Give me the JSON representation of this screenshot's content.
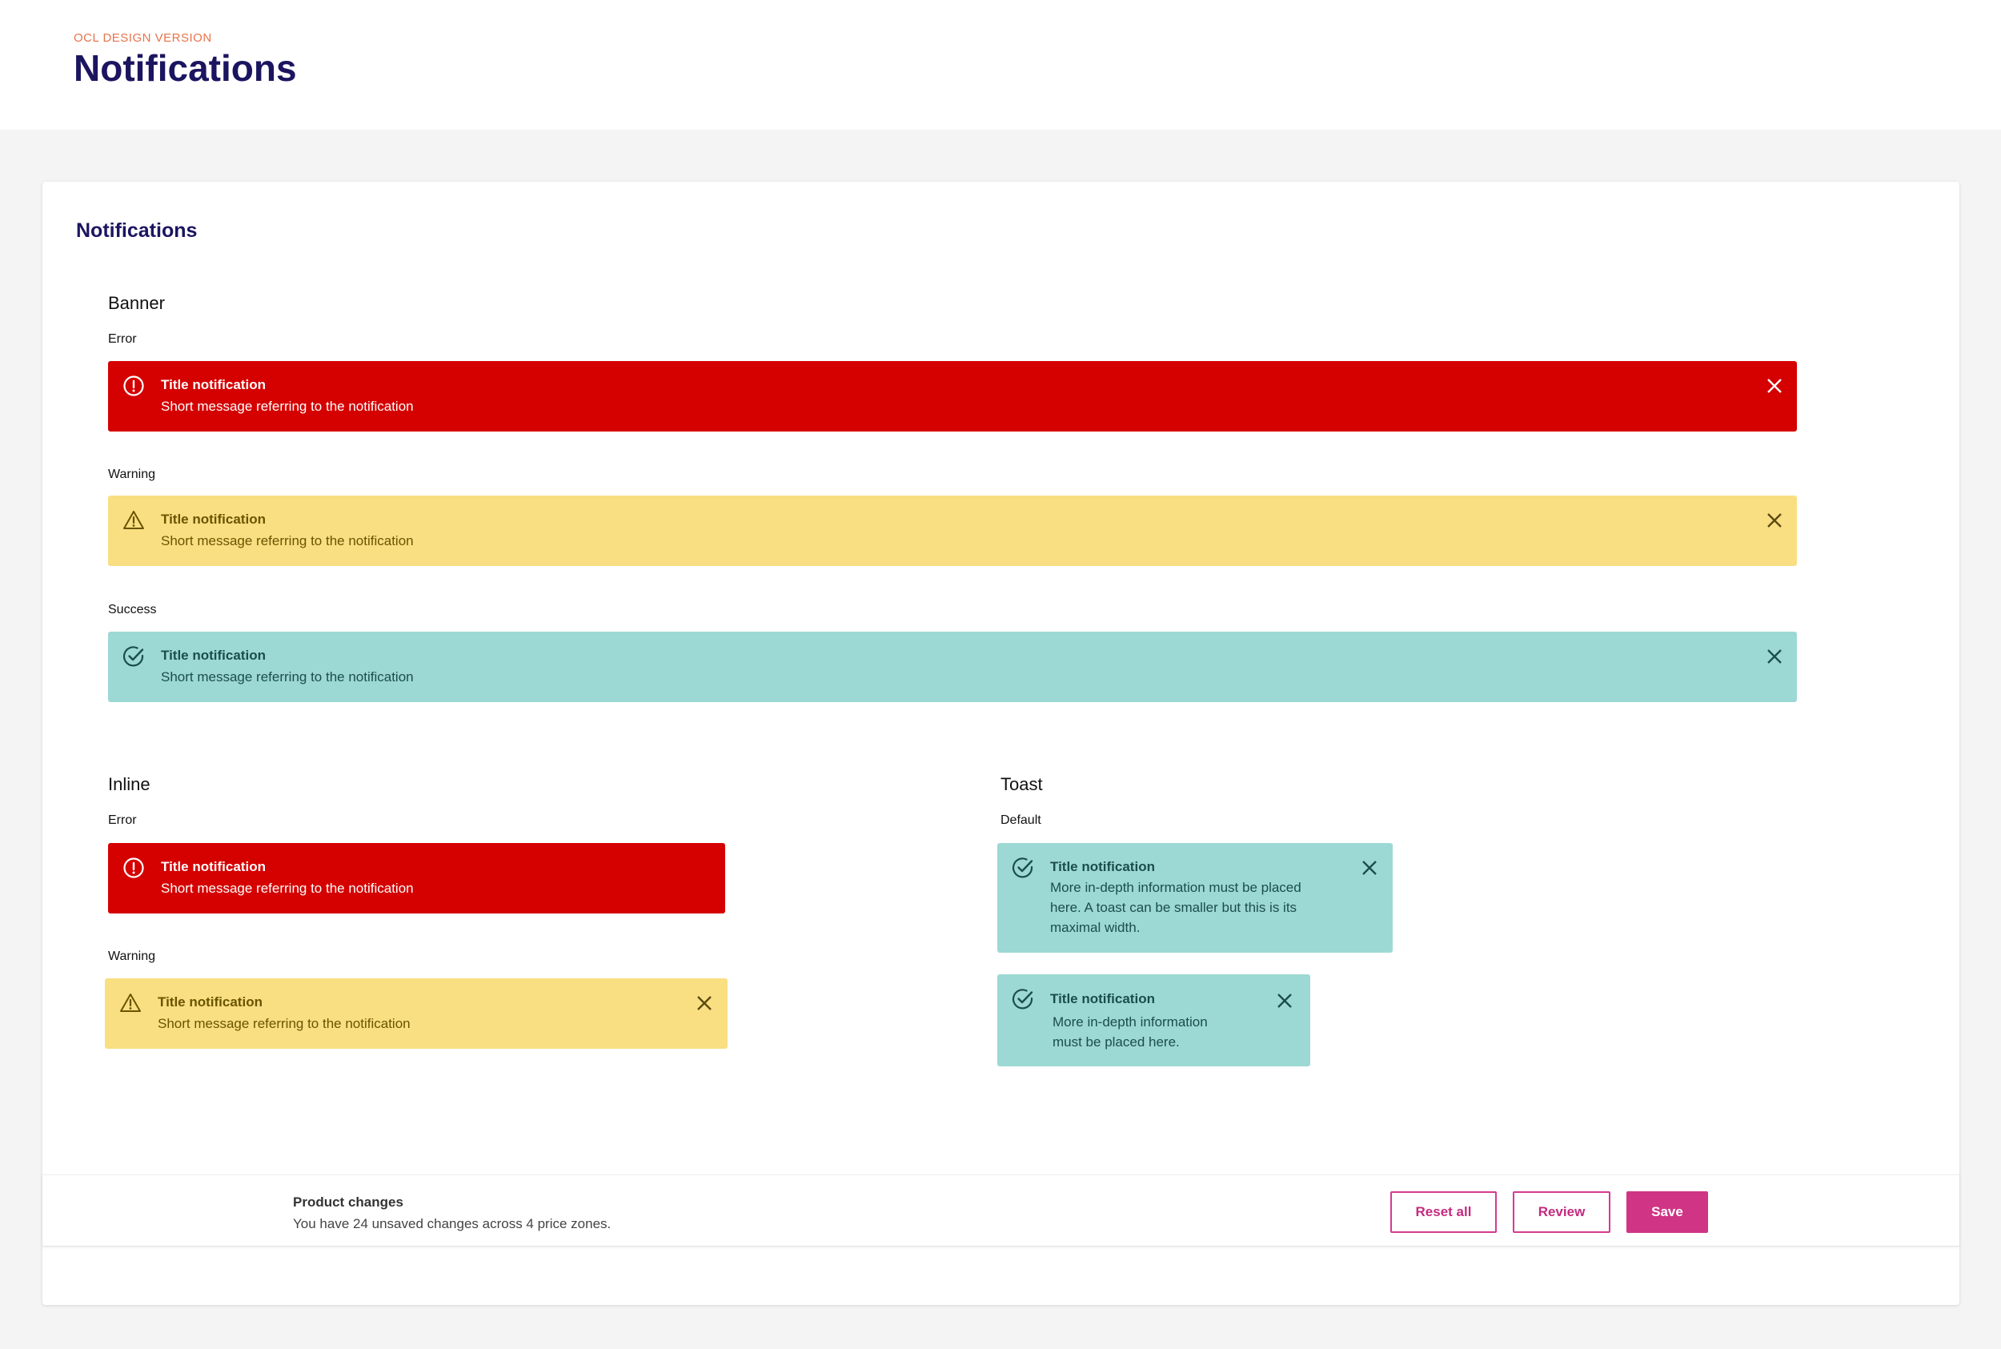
{
  "header": {
    "eyebrow": "OCL DESIGN VERSION",
    "title": "Notifications"
  },
  "card": {
    "title": "Notifications"
  },
  "banner": {
    "section_title": "Banner",
    "error": {
      "label": "Error",
      "title": "Title notification",
      "message": "Short message referring to the notification"
    },
    "warning": {
      "label": "Warning",
      "title": "Title notification",
      "message": "Short message referring to the notification"
    },
    "success": {
      "label": "Success",
      "title": "Title notification",
      "message": "Short message referring to the notification"
    }
  },
  "inline": {
    "section_title": "Inline",
    "error": {
      "label": "Error",
      "title": "Title notification",
      "message": "Short message referring to the notification"
    },
    "warning": {
      "label": "Warning",
      "title": "Title notification",
      "message": "Short message referring to the notification"
    }
  },
  "toast": {
    "section_title": "Toast",
    "default_label": "Default",
    "large": {
      "title": "Title notification",
      "message": "More in-depth information must be placed here. A toast can be smaller but this is its maximal width."
    },
    "small": {
      "title": "Title notification",
      "message": "More in-depth information must be placed here."
    }
  },
  "action_bar": {
    "title": "Product changes",
    "message": "You have 24 unsaved changes across 4 price zones.",
    "reset_label": "Reset all",
    "review_label": "Review",
    "save_label": "Save"
  },
  "colors": {
    "error_bg": "#d50000",
    "warning_bg": "#f9df82",
    "success_bg": "#9dd9d4",
    "title_navy": "#1b1560",
    "eyebrow_orange": "#e8734a",
    "brand_pink": "#cf3485"
  },
  "icons": {
    "error": "alert-circle-icon",
    "warning": "warning-triangle-icon",
    "success": "check-circle-icon",
    "close": "close-icon"
  }
}
